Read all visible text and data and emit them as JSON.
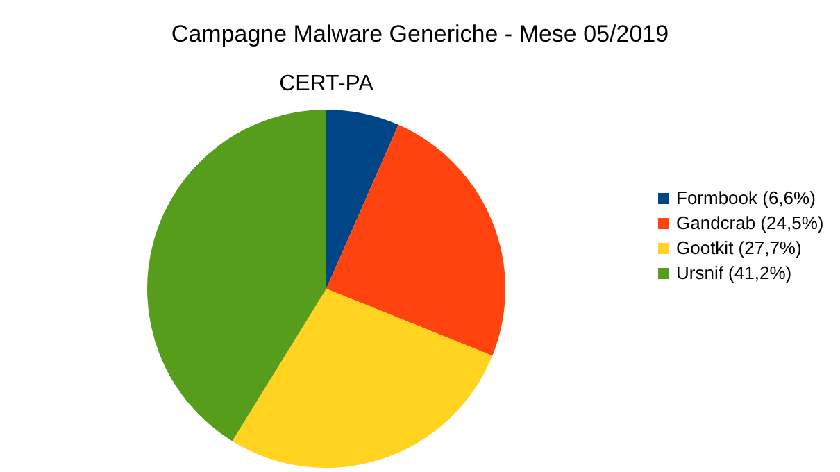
{
  "chart_data": {
    "type": "pie",
    "title": "Campagne Malware Generiche - Mese 05/2019",
    "subtitle": "CERT-PA",
    "categories": [
      "Formbook (6,6%)",
      "Gandcrab (24,5%)",
      "Gootkit (27,7%)",
      "Ursnif (41,2%)"
    ],
    "values": [
      6.6,
      24.5,
      27.7,
      41.2
    ],
    "colors": [
      "#004586",
      "#ff420e",
      "#ffd320",
      "#579d1c"
    ],
    "legend": "right"
  }
}
